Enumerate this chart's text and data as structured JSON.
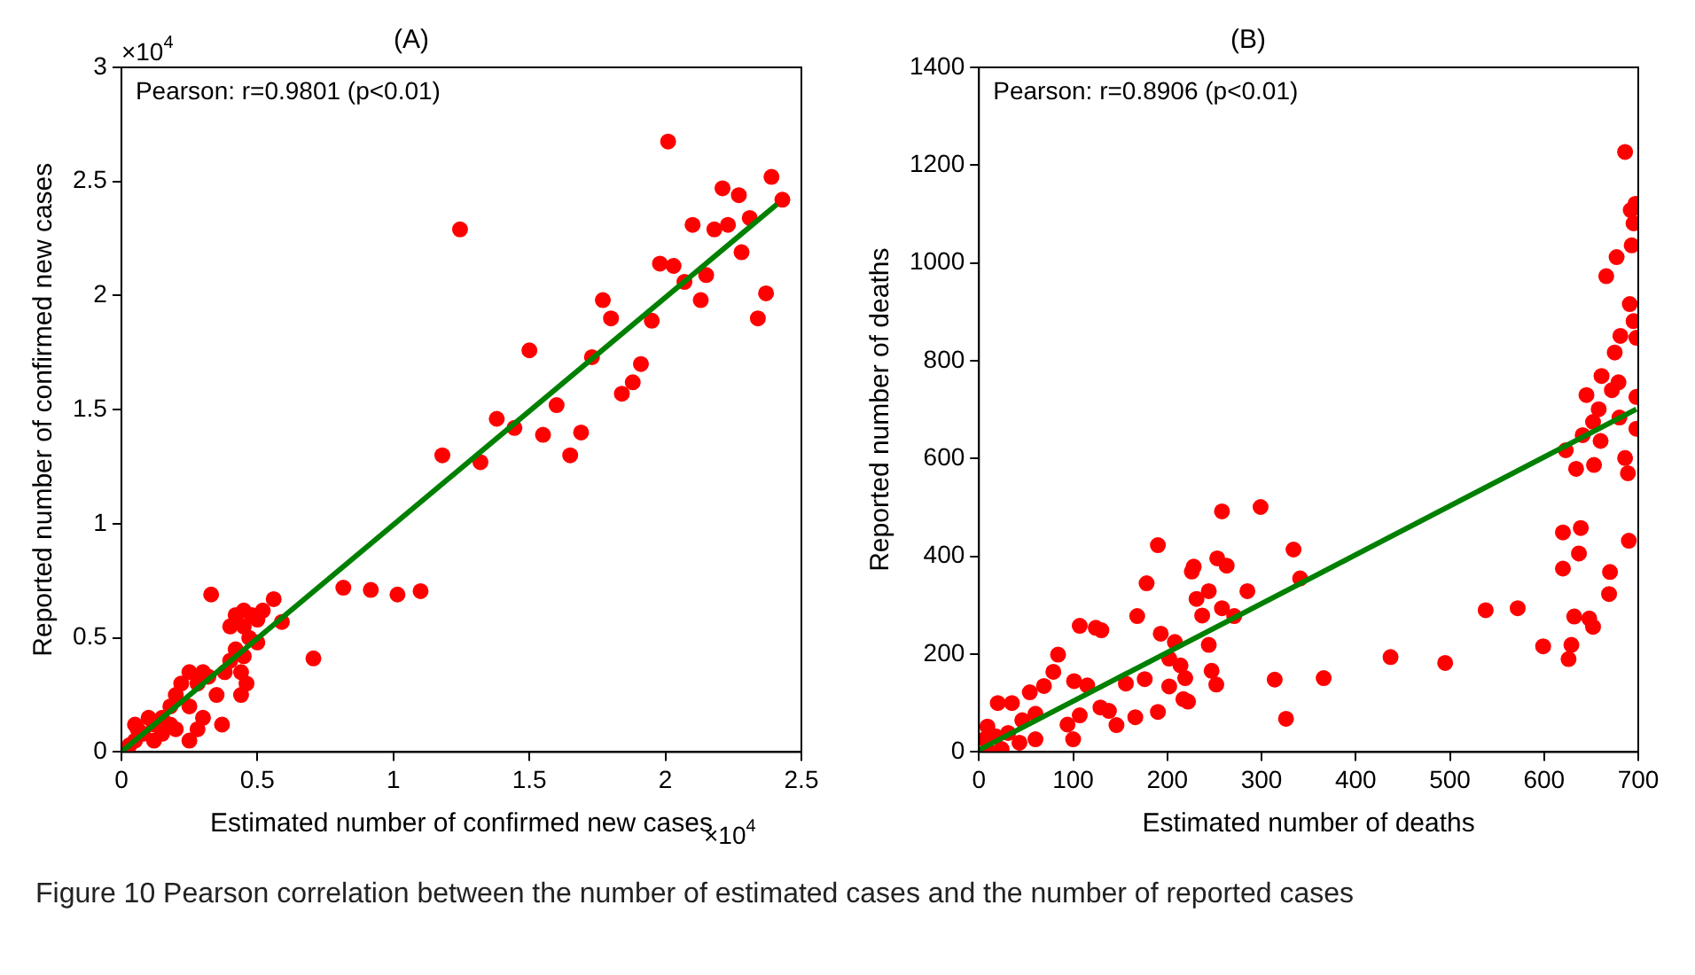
{
  "chart_data": [
    {
      "type": "scatter",
      "title": "(A)",
      "xlabel": "Estimated number of confirmed new cases",
      "ylabel": "Reported number of confirmed new cases",
      "annotations": [
        "Pearson: r=0.9801 (p<0.01)",
        "×10$^{4}$",
        "×10$^{4}$",
        "Figure 10  Pearson correlation between the number of estimated cases and the number of reported cases"
      ],
      "xlim": [
        0,
        2.5
      ],
      "xticks": [
        0,
        0.5,
        1,
        1.5,
        2,
        2.5
      ],
      "ylim": [
        0,
        3
      ],
      "yticks": [
        0,
        0.5,
        1,
        1.5,
        2,
        2.5,
        3
      ],
      "grid": false,
      "legend": false,
      "series": [
        {
          "color": "#ff0000",
          "marker": "circle",
          "x": [
            2.01,
            2.39,
            2.21,
            2.27,
            2.43,
            2.31,
            2.1,
            2.18,
            2.23,
            1.245,
            1.98,
            2.03,
            2.28,
            2.15,
            2.07,
            2.13,
            2.37,
            2.34,
            1.77,
            1.8,
            1.95,
            1.5,
            1.73,
            1.91,
            1.88,
            1.84,
            1.6,
            1.38,
            1.445,
            1.55,
            1.69,
            1.65,
            1.18,
            1.32,
            0.816,
            0.917,
            1.015,
            1.1,
            0.706,
            0.33,
            0.56,
            0.59,
            0.45,
            0.42,
            0.48,
            0.4,
            0.45,
            0.5,
            0.52,
            0.47,
            0.42,
            0.45,
            0.5,
            0.4,
            0.38,
            0.44,
            0.46,
            0.44,
            0.35,
            0.28,
            0.25,
            0.3,
            0.32,
            0.22,
            0.2,
            0.18,
            0.25,
            0.3,
            0.37,
            0.28,
            0.15,
            0.12,
            0.08,
            0.05,
            0.03,
            0.06,
            0.12,
            0.15,
            0.2,
            0.1,
            0.05,
            0.25,
            0.18
          ],
          "values": [
            2.675,
            2.52,
            2.47,
            2.44,
            2.42,
            2.34,
            2.31,
            2.29,
            2.31,
            2.29,
            2.14,
            2.13,
            2.19,
            2.09,
            2.06,
            1.98,
            2.01,
            1.9,
            1.98,
            1.9,
            1.89,
            1.76,
            1.73,
            1.7,
            1.62,
            1.57,
            1.52,
            1.46,
            1.42,
            1.39,
            1.4,
            1.3,
            1.3,
            1.27,
            0.72,
            0.71,
            0.69,
            0.705,
            0.41,
            0.69,
            0.67,
            0.57,
            0.62,
            0.6,
            0.6,
            0.55,
            0.55,
            0.58,
            0.62,
            0.5,
            0.45,
            0.42,
            0.48,
            0.4,
            0.35,
            0.35,
            0.3,
            0.25,
            0.25,
            0.3,
            0.35,
            0.35,
            0.33,
            0.3,
            0.25,
            0.2,
            0.2,
            0.15,
            0.12,
            0.1,
            0.15,
            0.12,
            0.08,
            0.05,
            0.03,
            0.1,
            0.05,
            0.08,
            0.1,
            0.15,
            0.12,
            0.05,
            0.12
          ]
        },
        {
          "type": "line",
          "color": "#008000",
          "marker": "none",
          "line_style": "solid",
          "x": [
            0,
            2.41
          ],
          "values": [
            0,
            2.4
          ]
        }
      ]
    },
    {
      "type": "scatter",
      "title": "(B)",
      "xlabel": "Estimated number of deaths",
      "ylabel": "Reported number of deaths",
      "annotations": [
        "Pearson: r=0.8906 (p<0.01)"
      ],
      "xlim": [
        0,
        700
      ],
      "xticks": [
        0,
        100,
        200,
        300,
        400,
        500,
        600,
        700
      ],
      "ylim": [
        0,
        1400
      ],
      "yticks": [
        0,
        200,
        400,
        600,
        800,
        1000,
        1200,
        1400
      ],
      "grid": false,
      "legend": false,
      "series": [
        {
          "color": "#ff0000",
          "marker": "circle",
          "x": [
            686,
            697,
            692,
            695,
            693,
            677,
            666,
            691,
            695,
            681,
            698,
            675,
            661,
            679,
            672,
            658,
            645,
            698,
            652,
            680,
            641,
            623,
            660,
            698,
            686,
            634,
            653,
            689,
            690,
            620,
            639,
            637,
            620,
            670,
            669,
            632,
            648,
            652,
            629,
            626,
            599,
            572,
            538,
            495,
            437,
            366,
            314,
            326,
            299,
            258,
            334,
            341,
            285,
            253,
            263,
            228,
            226,
            244,
            231,
            237,
            258,
            271,
            244,
            190,
            178,
            168,
            193,
            208,
            202,
            214,
            219,
            202,
            247,
            252,
            217,
            222,
            166,
            190,
            176,
            156,
            107,
            124,
            130,
            84,
            79,
            101,
            115,
            107,
            129,
            138,
            146,
            94,
            100,
            69,
            54,
            20,
            35,
            60,
            46,
            60,
            9,
            6,
            18,
            31,
            43,
            24,
            12
          ],
          "values": [
            1227,
            1121,
            1108,
            1081,
            1036,
            1012,
            973,
            916,
            881,
            851,
            847,
            817,
            769,
            756,
            740,
            701,
            730,
            726,
            675,
            684,
            648,
            617,
            636,
            661,
            601,
            579,
            587,
            570,
            432,
            449,
            458,
            406,
            375,
            368,
            323,
            277,
            273,
            256,
            219,
            190,
            216,
            294,
            290,
            182,
            194,
            151,
            148,
            68,
            501,
            492,
            414,
            355,
            329,
            396,
            381,
            379,
            369,
            329,
            313,
            279,
            294,
            278,
            219,
            423,
            345,
            278,
            242,
            225,
            191,
            177,
            151,
            134,
            166,
            138,
            108,
            103,
            71,
            82,
            149,
            140,
            258,
            254,
            249,
            199,
            164,
            145,
            136,
            75,
            91,
            84,
            55,
            56,
            26,
            135,
            122,
            100,
            100,
            78,
            65,
            26,
            52,
            26,
            32,
            39,
            19,
            6,
            0
          ]
        },
        {
          "type": "line",
          "color": "#008000",
          "marker": "none",
          "line_style": "solid",
          "x": [
            0,
            698
          ],
          "values": [
            4,
            701
          ]
        }
      ]
    }
  ]
}
